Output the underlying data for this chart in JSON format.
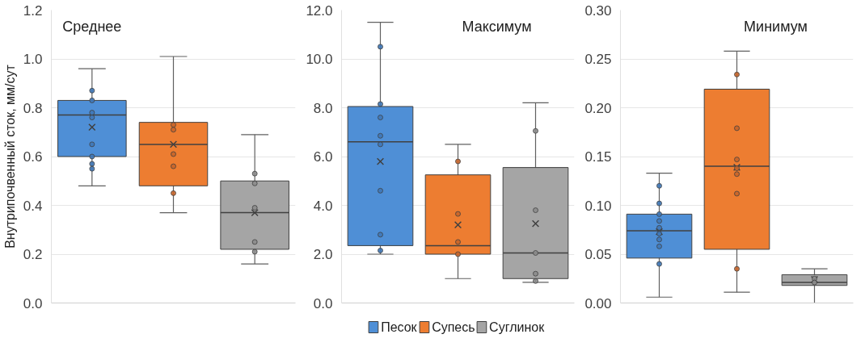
{
  "chart_data": [
    {
      "type": "box",
      "title": "Среднее",
      "ylabel": "Внутрипочвенный сток, мм/сут",
      "categories": [
        null,
        null,
        null
      ],
      "ylim": [
        0,
        1.2
      ],
      "yticks": [
        {
          "value": 0,
          "label": "0.0"
        },
        {
          "value": 0.2,
          "label": "0.2"
        },
        {
          "value": 0.4,
          "label": "0.4"
        },
        {
          "value": 0.6,
          "label": "0.6"
        },
        {
          "value": 0.8,
          "label": "0.8"
        },
        {
          "value": 1.0,
          "label": "1.0"
        },
        {
          "value": 1.2,
          "label": "1.2"
        }
      ],
      "grid": "y",
      "tick_labels": "y",
      "marker": "circle",
      "series": [
        {
          "color": "#4f8fd6",
          "boxes": [
            {
              "low": 0.48,
              "q1": 0.6,
              "median": 0.77,
              "q3": 0.83,
              "high": 0.96,
              "mean": 0.72
            },
            null,
            null
          ]
        },
        {
          "color": "#ed7d31",
          "boxes": [
            null,
            {
              "low": 0.37,
              "q1": 0.48,
              "median": 0.65,
              "q3": 0.74,
              "high": 1.01,
              "mean": 0.65
            },
            null
          ]
        },
        {
          "color": "#a5a5a5",
          "boxes": [
            null,
            null,
            {
              "low": 0.16,
              "q1": 0.22,
              "median": 0.37,
              "q3": 0.5,
              "high": 0.69,
              "mean": 0.37
            }
          ]
        },
        {
          "type": "scatter",
          "colors": [
            "#3f78b8",
            "#c8652a",
            "#8c8c8c"
          ],
          "values": [
            0.87,
            0.73,
            0.53
          ]
        },
        {
          "type": "scatter",
          "colors": [
            "#3f78b8",
            "#c8652a",
            "#8c8c8c"
          ],
          "values": [
            0.83,
            0.71,
            0.49
          ]
        },
        {
          "type": "scatter",
          "colors": [
            "#3f78b8",
            "#c8652a",
            "#8c8c8c"
          ],
          "values": [
            0.78,
            0.61,
            0.39
          ]
        },
        {
          "type": "scatter",
          "colors": [
            "#3f78b8",
            "#c8652a",
            "#8c8c8c"
          ],
          "values": [
            0.76,
            0.56,
            null
          ]
        },
        {
          "type": "scatter",
          "colors": [
            "#3f78b8",
            "#c8652a",
            "#8c8c8c"
          ],
          "values": [
            null,
            0.45,
            0.25
          ]
        },
        {
          "type": "scatter",
          "colors": [
            "#3f78b8",
            "#c8652a",
            "#8c8c8c"
          ],
          "values": [
            0.65,
            null,
            0.21
          ]
        },
        {
          "type": "scatter",
          "colors": [
            "#3f78b8",
            "#c8652a",
            "#8c8c8c"
          ],
          "values": [
            0.6,
            null,
            null
          ]
        },
        {
          "type": "scatter",
          "colors": [
            "#3f78b8",
            "#c8652a",
            "#8c8c8c"
          ],
          "values": [
            0.57,
            null,
            null
          ]
        },
        {
          "type": "scatter",
          "colors": [
            "#3f78b8",
            "#c8652a",
            "#8c8c8c"
          ],
          "values": [
            0.55,
            null,
            null
          ]
        }
      ]
    },
    {
      "type": "box",
      "title": "Максимум",
      "categories": [
        null,
        null,
        null
      ],
      "ylim": [
        0,
        12
      ],
      "yticks": [
        {
          "value": 0,
          "label": "0.0"
        },
        {
          "value": 2,
          "label": "2.0"
        },
        {
          "value": 4,
          "label": "4.0"
        },
        {
          "value": 6,
          "label": "6.0"
        },
        {
          "value": 8,
          "label": "8.0"
        },
        {
          "value": 10,
          "label": "10.0"
        },
        {
          "value": 12,
          "label": "12.0"
        }
      ],
      "grid": "y",
      "tick_labels": "y",
      "marker": "circle",
      "legend": "bottom",
      "series": [
        {
          "name": "Песок",
          "color": "#4f8fd6",
          "boxes": [
            {
              "low": 2.0,
              "q1": 2.35,
              "median": 6.6,
              "q3": 8.05,
              "high": 11.5,
              "mean": 5.8
            },
            null,
            null
          ]
        },
        {
          "name": "Супесь",
          "color": "#ed7d31",
          "boxes": [
            null,
            {
              "low": 1.0,
              "q1": 2.0,
              "median": 2.35,
              "q3": 5.25,
              "high": 6.5,
              "mean": 3.2
            },
            null
          ]
        },
        {
          "name": "Суглинок",
          "color": "#a5a5a5",
          "boxes": [
            null,
            null,
            {
              "low": 0.85,
              "q1": 1.0,
              "median": 2.05,
              "q3": 5.55,
              "high": 8.2,
              "mean": 3.25
            }
          ]
        },
        {
          "type": "scatter",
          "colors": [
            "#3f78b8",
            "#c8652a",
            "#8c8c8c"
          ],
          "values": [
            10.5,
            5.8,
            7.05
          ]
        },
        {
          "type": "scatter",
          "colors": [
            "#3f78b8",
            "#c8652a",
            "#8c8c8c"
          ],
          "values": [
            8.15,
            3.65,
            3.8
          ]
        },
        {
          "type": "scatter",
          "colors": [
            "#3f78b8",
            "#c8652a",
            "#8c8c8c"
          ],
          "values": [
            7.6,
            2.5,
            2.05
          ]
        },
        {
          "type": "scatter",
          "colors": [
            "#3f78b8",
            "#c8652a",
            "#8c8c8c"
          ],
          "values": [
            6.85,
            2.0,
            1.2
          ]
        },
        {
          "type": "scatter",
          "colors": [
            "#3f78b8",
            "#c8652a",
            "#8c8c8c"
          ],
          "values": [
            6.5,
            null,
            0.9
          ]
        },
        {
          "type": "scatter",
          "colors": [
            "#3f78b8",
            "#c8652a",
            "#8c8c8c"
          ],
          "values": [
            4.6,
            null,
            null
          ]
        },
        {
          "type": "scatter",
          "colors": [
            "#3f78b8",
            "#c8652a",
            "#8c8c8c"
          ],
          "values": [
            2.8,
            null,
            null
          ]
        },
        {
          "type": "scatter",
          "colors": [
            "#3f78b8",
            "#c8652a",
            "#8c8c8c"
          ],
          "values": [
            2.15,
            null,
            null
          ]
        }
      ]
    },
    {
      "type": "box",
      "title": "Минимум",
      "categories": [
        null,
        null,
        null
      ],
      "ylim": [
        0,
        0.3
      ],
      "yticks": [
        {
          "value": 0,
          "label": "0.00"
        },
        {
          "value": 0.05,
          "label": "0.05"
        },
        {
          "value": 0.1,
          "label": "0.10"
        },
        {
          "value": 0.15,
          "label": "0.15"
        },
        {
          "value": 0.2,
          "label": "0.20"
        },
        {
          "value": 0.25,
          "label": "0.25"
        },
        {
          "value": 0.3,
          "label": "0.30"
        }
      ],
      "grid": "y",
      "tick_labels": "y",
      "marker": "circle",
      "series": [
        {
          "color": "#4f8fd6",
          "boxes": [
            {
              "low": 0.006,
              "q1": 0.046,
              "median": 0.074,
              "q3": 0.091,
              "high": 0.133,
              "mean": 0.073
            },
            null,
            null
          ]
        },
        {
          "color": "#ed7d31",
          "boxes": [
            null,
            {
              "low": 0.011,
              "q1": 0.055,
              "median": 0.14,
              "q3": 0.219,
              "high": 0.258,
              "mean": 0.139
            },
            null
          ]
        },
        {
          "color": "#a5a5a5",
          "boxes": [
            null,
            null,
            {
              "low": 0.0,
              "q1": 0.018,
              "median": 0.021,
              "q3": 0.029,
              "high": 0.035,
              "mean": 0.024
            }
          ]
        },
        {
          "type": "scatter",
          "colors": [
            "#3f78b8",
            "#c8652a",
            "#8c8c8c"
          ],
          "values": [
            0.12,
            0.234,
            0.025
          ]
        },
        {
          "type": "scatter",
          "colors": [
            "#3f78b8",
            "#c8652a",
            "#8c8c8c"
          ],
          "values": [
            0.102,
            0.179,
            0.021
          ]
        },
        {
          "type": "scatter",
          "colors": [
            "#3f78b8",
            "#c8652a",
            "#8c8c8c"
          ],
          "values": [
            0.091,
            0.147,
            null
          ]
        },
        {
          "type": "scatter",
          "colors": [
            "#3f78b8",
            "#c8652a",
            "#8c8c8c"
          ],
          "values": [
            0.084,
            0.138,
            null
          ]
        },
        {
          "type": "scatter",
          "colors": [
            "#3f78b8",
            "#c8652a",
            "#8c8c8c"
          ],
          "values": [
            0.077,
            0.132,
            null
          ]
        },
        {
          "type": "scatter",
          "colors": [
            "#3f78b8",
            "#c8652a",
            "#8c8c8c"
          ],
          "values": [
            0.071,
            0.112,
            null
          ]
        },
        {
          "type": "scatter",
          "colors": [
            "#3f78b8",
            "#c8652a",
            "#8c8c8c"
          ],
          "values": [
            0.065,
            0.035,
            null
          ]
        },
        {
          "type": "scatter",
          "colors": [
            "#3f78b8",
            "#c8652a",
            "#8c8c8c"
          ],
          "values": [
            0.058,
            null,
            null
          ]
        },
        {
          "type": "scatter",
          "colors": [
            "#3f78b8",
            "#c8652a",
            "#8c8c8c"
          ],
          "values": [
            0.04,
            null,
            null
          ]
        }
      ]
    }
  ]
}
